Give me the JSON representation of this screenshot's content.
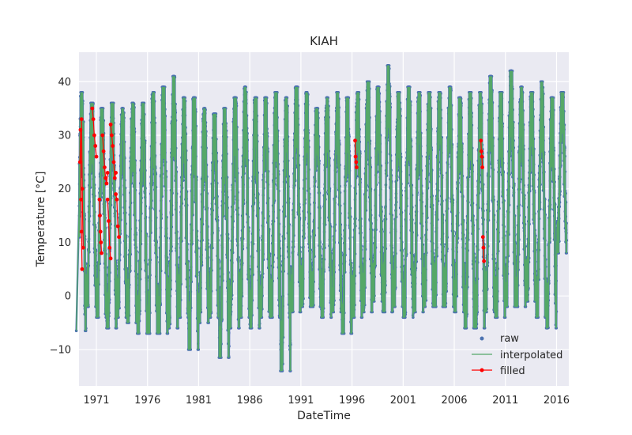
{
  "chart_data": {
    "type": "line",
    "title": "KIAH",
    "xlabel": "DateTime",
    "ylabel": "Temperature [°C]",
    "xlim": [
      1969.3,
      2017.2
    ],
    "ylim": [
      -16.8,
      45.5
    ],
    "x_ticks": [
      1971,
      1976,
      1981,
      1986,
      1991,
      1996,
      2001,
      2006,
      2011,
      2016
    ],
    "x_tick_labels": [
      "1971",
      "1976",
      "1981",
      "1986",
      "1991",
      "1996",
      "2001",
      "2006",
      "2011",
      "2016"
    ],
    "y_ticks": [
      -10,
      0,
      10,
      20,
      30,
      40
    ],
    "y_tick_labels": [
      "−10",
      "0",
      "10",
      "20",
      "30",
      "40"
    ],
    "grid": true,
    "legend": "lower-right",
    "colors": {
      "raw": "#4c72b0",
      "interpolated": "#55a868",
      "filled": "#ff0000",
      "axes_bg": "#eaeaf2",
      "grid": "#ffffff"
    },
    "seasonal_range": {
      "summer_peak_max": [
        38,
        36,
        35,
        36,
        35,
        36,
        36,
        38,
        39,
        41,
        37,
        37,
        35,
        34,
        35,
        37,
        39,
        37,
        37,
        38,
        37,
        39,
        38,
        35,
        37,
        38,
        37,
        38,
        40,
        39,
        43,
        38,
        39,
        38,
        38,
        38,
        39,
        37,
        38,
        38,
        41,
        38,
        42,
        39,
        38,
        40,
        37,
        38
      ],
      "winter_trough_min": [
        -6.5,
        -2,
        -4,
        -6,
        -4,
        -5,
        -7,
        -7,
        -7,
        -6,
        -4,
        -10,
        -5,
        -4,
        -11.5,
        -6,
        -4,
        -6,
        -4,
        -4,
        -14,
        -3,
        -2,
        -2,
        -4,
        -3,
        -7,
        -4,
        -3,
        -1,
        -3,
        -2,
        -4,
        -3,
        -2,
        -2,
        -2,
        -3,
        -6,
        -6,
        -3,
        -4,
        -2,
        -2,
        -1,
        -4,
        -6,
        8
      ]
    },
    "series": [
      {
        "name": "raw",
        "style": "points"
      },
      {
        "name": "interpolated",
        "style": "line"
      },
      {
        "name": "filled",
        "style": "line-with-markers",
        "segments": [
          {
            "x": [
              1969.4,
              1969.45,
              1969.5,
              1969.55,
              1969.6
            ],
            "y": [
              25,
              31,
              18,
              12,
              5
            ]
          },
          {
            "x": [
              1969.55,
              1969.62,
              1969.7
            ],
            "y": [
              33,
              20,
              9
            ]
          },
          {
            "x": [
              1970.6,
              1970.7,
              1970.8,
              1970.9,
              1971.0
            ],
            "y": [
              35,
              33,
              30,
              28,
              26
            ]
          },
          {
            "x": [
              1971.3,
              1971.35,
              1971.4,
              1971.45,
              1971.5
            ],
            "y": [
              18,
              15,
              12,
              10,
              8
            ]
          },
          {
            "x": [
              1971.6,
              1971.7,
              1971.8,
              1971.9,
              1972.0,
              1972.1
            ],
            "y": [
              30,
              27,
              24,
              22,
              21,
              23
            ]
          },
          {
            "x": [
              1972.1,
              1972.2,
              1972.3,
              1972.4
            ],
            "y": [
              18,
              14,
              9,
              7
            ]
          },
          {
            "x": [
              1972.4,
              1972.5,
              1972.6,
              1972.7,
              1972.8,
              1972.9
            ],
            "y": [
              32,
              30,
              28,
              25,
              22,
              23
            ]
          },
          {
            "x": [
              1972.9,
              1973.0,
              1973.1,
              1973.2
            ],
            "y": [
              19,
              18,
              13,
              11
            ]
          },
          {
            "x": [
              1996.3,
              1996.35,
              1996.4,
              1996.45
            ],
            "y": [
              29,
              26,
              25,
              24
            ]
          },
          {
            "x": [
              2008.6,
              2008.65,
              2008.7,
              2008.75
            ],
            "y": [
              29,
              27,
              26,
              24
            ]
          },
          {
            "x": [
              2008.8,
              2008.85,
              2008.9
            ],
            "y": [
              11,
              9,
              6.5
            ]
          }
        ]
      }
    ]
  }
}
